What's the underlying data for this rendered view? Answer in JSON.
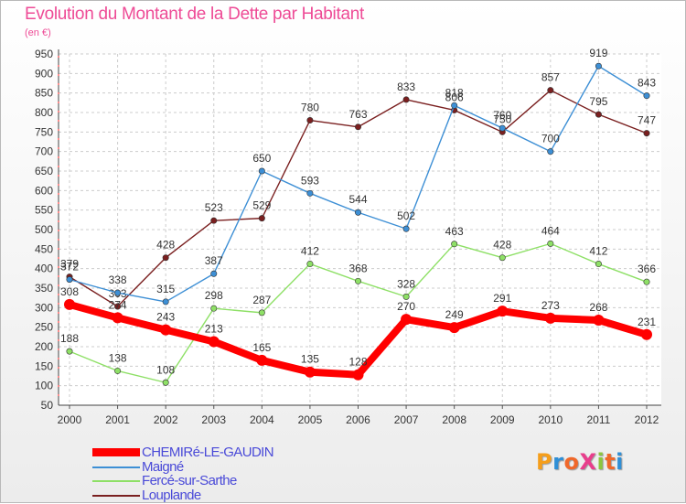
{
  "title": "Evolution du Montant de la Dette par Habitant",
  "subtitle": "(en €)",
  "logo": {
    "text": "ProXiti",
    "letter_colors": [
      "#f59e1b",
      "#2f8fd6",
      "#f0682a",
      "#e83e8c",
      "#8cc63e",
      "#f0682a",
      "#2f8fd6"
    ]
  },
  "chart_data": {
    "type": "line",
    "x": [
      2000,
      2001,
      2002,
      2003,
      2004,
      2005,
      2006,
      2007,
      2008,
      2009,
      2010,
      2011,
      2012
    ],
    "ylim": [
      50,
      950
    ],
    "yticks": [
      50,
      100,
      150,
      200,
      250,
      300,
      350,
      400,
      450,
      500,
      550,
      600,
      650,
      700,
      750,
      800,
      850,
      900,
      950
    ],
    "grid": true,
    "legend_position": "bottom-left",
    "series": [
      {
        "name": "CHEMIRé-LE-GAUDIN",
        "color": "#ff0000",
        "values": [
          308,
          274,
          243,
          213,
          165,
          135,
          128,
          270,
          249,
          291,
          273,
          268,
          231
        ]
      },
      {
        "name": "Maigné",
        "color": "#3d8fd5",
        "values": [
          372,
          338,
          315,
          387,
          650,
          593,
          544,
          502,
          818,
          760,
          700,
          919,
          843
        ]
      },
      {
        "name": "Fercé-sur-Sarthe",
        "color": "#8ee066",
        "values": [
          188,
          138,
          108,
          298,
          287,
          412,
          368,
          328,
          463,
          428,
          464,
          412,
          366
        ]
      },
      {
        "name": "Louplande",
        "color": "#7a1f1f",
        "values": [
          379,
          303,
          428,
          523,
          529,
          780,
          763,
          833,
          806,
          750,
          857,
          795,
          747
        ]
      }
    ]
  }
}
